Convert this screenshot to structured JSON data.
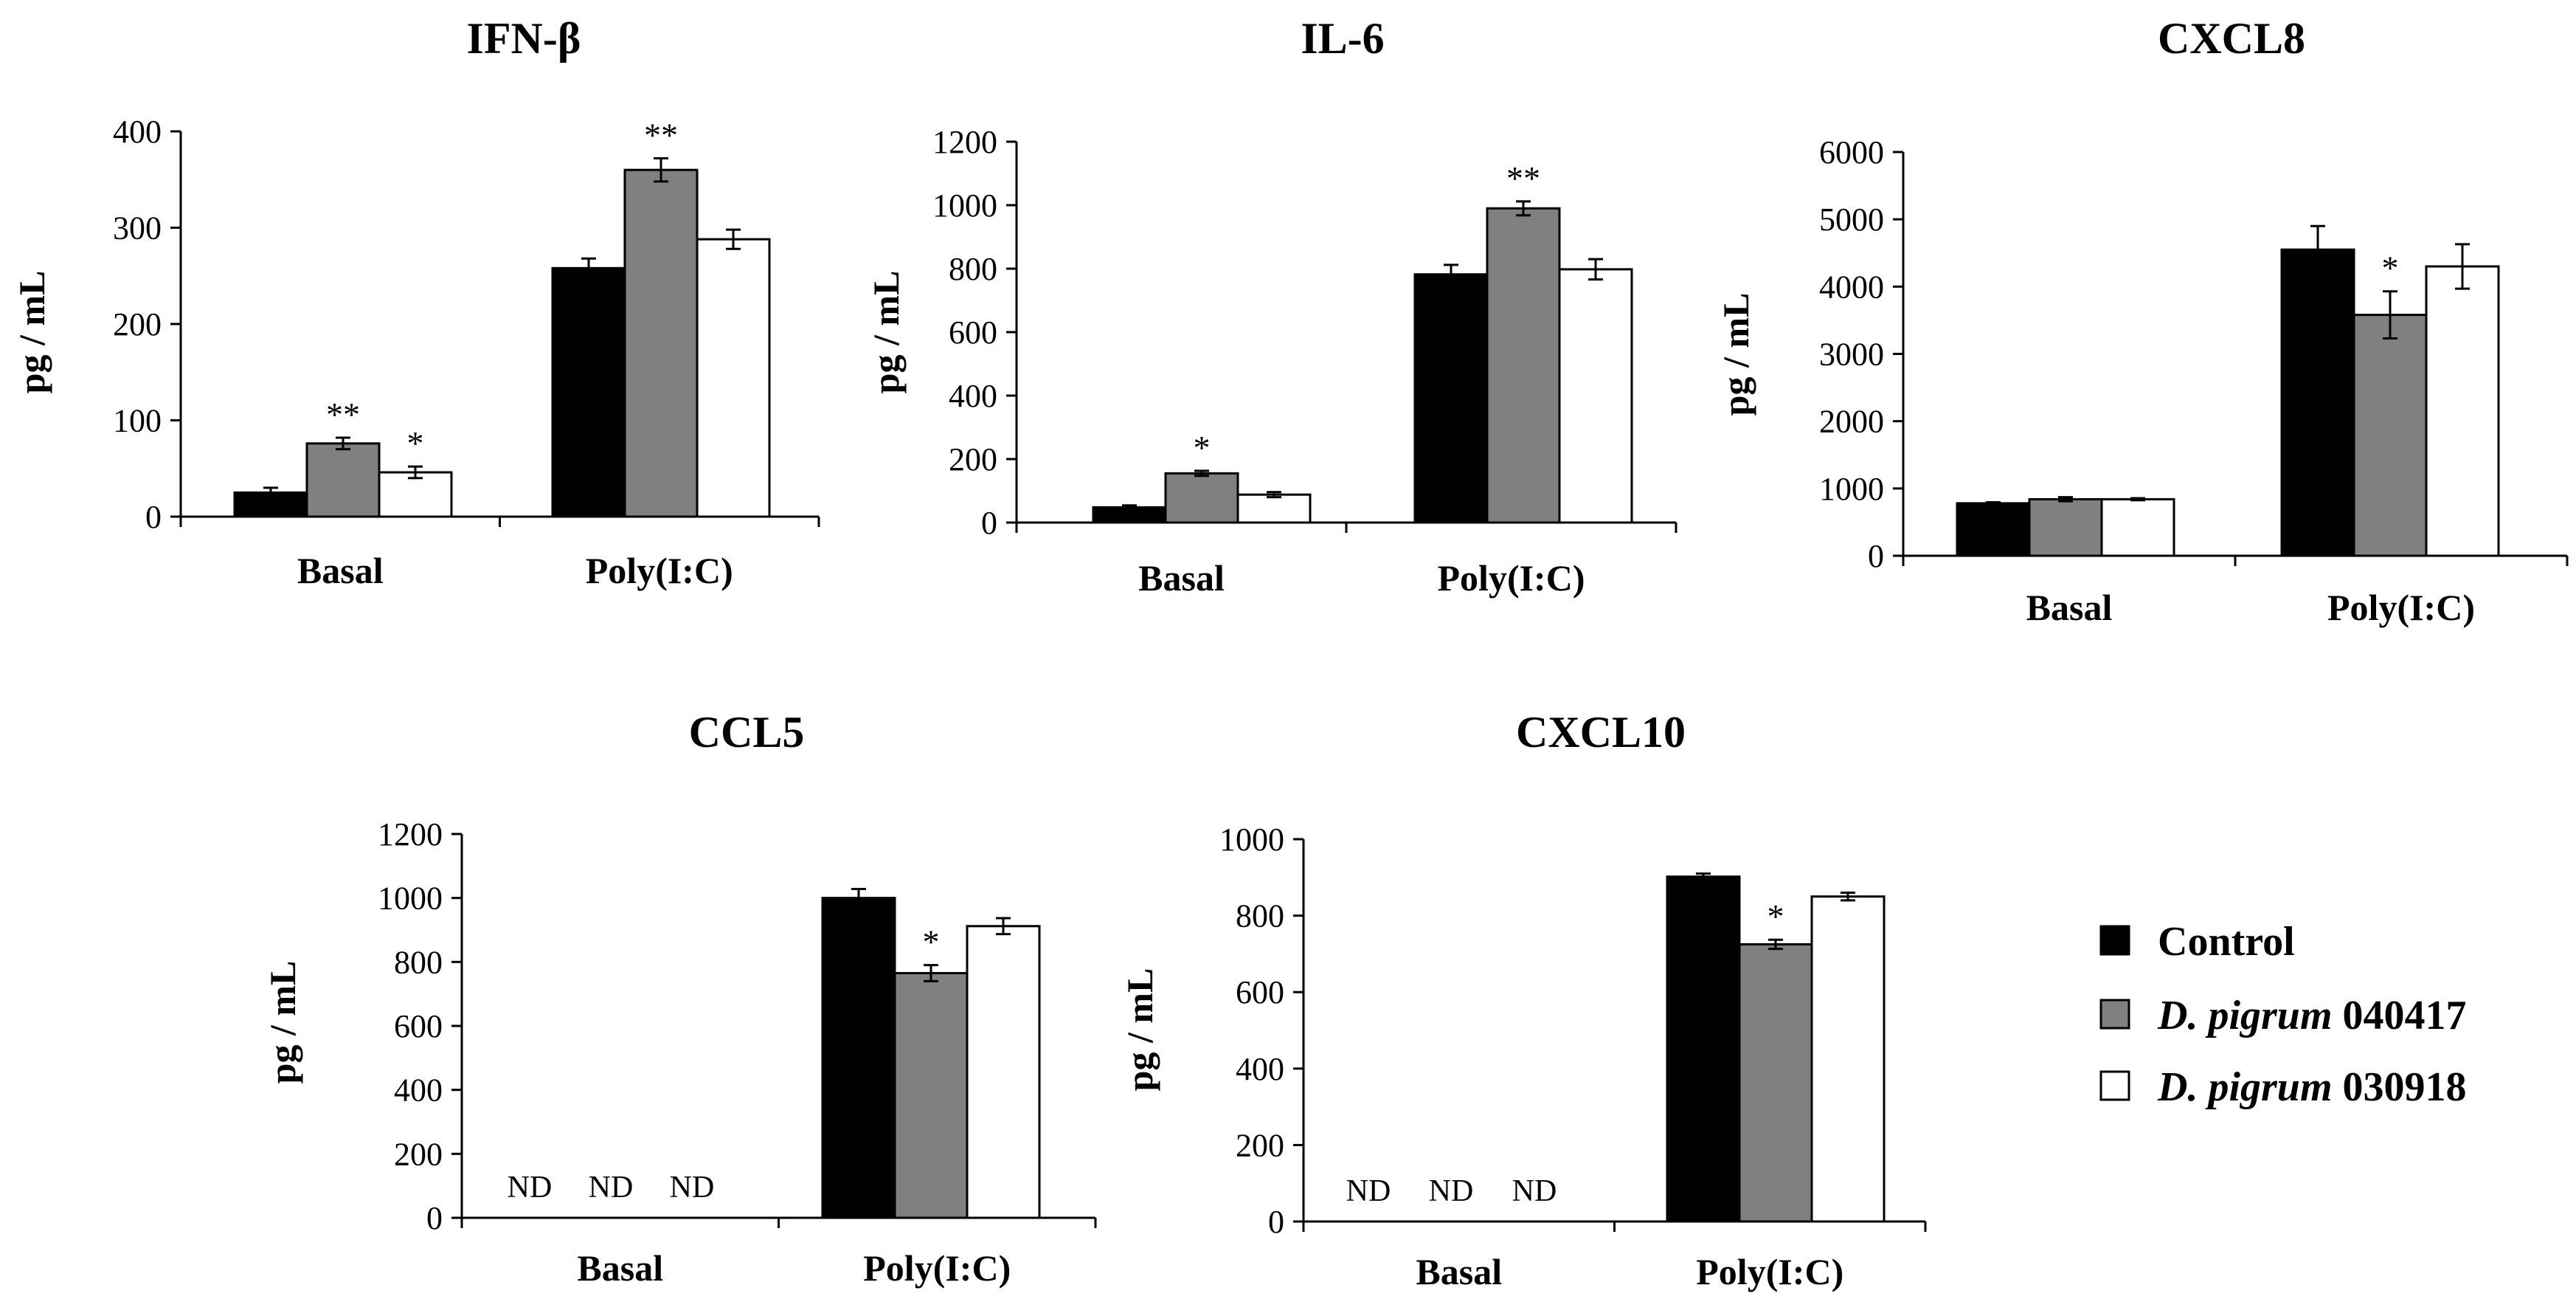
{
  "legend": {
    "items": [
      {
        "name": "Control",
        "italic": "",
        "bold": "Control",
        "color": "#000000"
      },
      {
        "name": "D. pigrum 040417",
        "italic": "D. pigrum",
        "bold": "040417",
        "color": "#808080"
      },
      {
        "name": "D. pigrum 030918",
        "italic": "D. pigrum",
        "bold": "030918",
        "color": "#ffffff"
      }
    ]
  },
  "chart_data": [
    {
      "type": "bar",
      "title": "IFN-β",
      "ylabel": "pg / mL",
      "xlabel": "",
      "categories": [
        "Basal",
        "Poly(I:C)"
      ],
      "ylim": [
        0,
        400
      ],
      "yticks": [
        0,
        100,
        200,
        300,
        400
      ],
      "series": [
        {
          "name": "Control",
          "values": [
            25,
            258
          ],
          "errors": [
            5,
            10
          ],
          "labels": [
            "",
            ""
          ]
        },
        {
          "name": "D. pigrum 040417",
          "values": [
            76,
            360
          ],
          "errors": [
            6,
            12
          ],
          "labels": [
            "**",
            "**"
          ]
        },
        {
          "name": "D. pigrum 030918",
          "values": [
            46,
            288
          ],
          "errors": [
            6,
            10
          ],
          "labels": [
            "*",
            ""
          ]
        }
      ]
    },
    {
      "type": "bar",
      "title": "IL-6",
      "ylabel": "pg / mL",
      "xlabel": "",
      "categories": [
        "Basal",
        "Poly(I:C)"
      ],
      "ylim": [
        0,
        1200
      ],
      "yticks": [
        0,
        200,
        400,
        600,
        800,
        1000,
        1200
      ],
      "series": [
        {
          "name": "Control",
          "values": [
            48,
            782
          ],
          "errors": [
            6,
            30
          ],
          "labels": [
            "",
            ""
          ]
        },
        {
          "name": "D. pigrum 040417",
          "values": [
            155,
            990
          ],
          "errors": [
            8,
            22
          ],
          "labels": [
            "*",
            "**"
          ]
        },
        {
          "name": "D. pigrum 030918",
          "values": [
            88,
            798
          ],
          "errors": [
            8,
            32
          ],
          "labels": [
            "",
            ""
          ]
        }
      ]
    },
    {
      "type": "bar",
      "title": "CXCL8",
      "ylabel": "pg / mL",
      "xlabel": "",
      "categories": [
        "Basal",
        "Poly(I:C)"
      ],
      "ylim": [
        0,
        6000
      ],
      "yticks": [
        0,
        1000,
        2000,
        3000,
        4000,
        5000,
        6000
      ],
      "series": [
        {
          "name": "Control",
          "values": [
            780,
            4550
          ],
          "errors": [
            15,
            350
          ],
          "labels": [
            "",
            ""
          ]
        },
        {
          "name": "D. pigrum 040417",
          "values": [
            840,
            3580
          ],
          "errors": [
            30,
            350
          ],
          "labels": [
            "",
            "*"
          ]
        },
        {
          "name": "D. pigrum 030918",
          "values": [
            840,
            4300
          ],
          "errors": [
            15,
            330
          ],
          "labels": [
            "",
            ""
          ]
        }
      ]
    },
    {
      "type": "bar",
      "title": "CCL5",
      "ylabel": "pg / mL",
      "xlabel": "",
      "categories": [
        "Basal",
        "Poly(I:C)"
      ],
      "ylim": [
        0,
        1200
      ],
      "yticks": [
        0,
        200,
        400,
        600,
        800,
        1000,
        1200
      ],
      "series": [
        {
          "name": "Control",
          "values": [
            null,
            1000
          ],
          "errors": [
            0,
            28
          ],
          "labels": [
            "ND",
            ""
          ]
        },
        {
          "name": "D. pigrum 040417",
          "values": [
            null,
            765
          ],
          "errors": [
            0,
            25
          ],
          "labels": [
            "ND",
            "*"
          ]
        },
        {
          "name": "D. pigrum 030918",
          "values": [
            null,
            912
          ],
          "errors": [
            0,
            25
          ],
          "labels": [
            "ND",
            ""
          ]
        }
      ]
    },
    {
      "type": "bar",
      "title": "CXCL10",
      "ylabel": "pg / mL",
      "xlabel": "",
      "categories": [
        "Basal",
        "Poly(I:C)"
      ],
      "ylim": [
        0,
        1000
      ],
      "yticks": [
        0,
        200,
        400,
        600,
        800,
        1000
      ],
      "series": [
        {
          "name": "Control",
          "values": [
            null,
            902
          ],
          "errors": [
            0,
            8
          ],
          "labels": [
            "ND",
            ""
          ]
        },
        {
          "name": "D. pigrum 040417",
          "values": [
            null,
            725
          ],
          "errors": [
            0,
            12
          ],
          "labels": [
            "ND",
            "*"
          ]
        },
        {
          "name": "D. pigrum 030918",
          "values": [
            null,
            850
          ],
          "errors": [
            0,
            10
          ],
          "labels": [
            "ND",
            ""
          ]
        }
      ]
    }
  ]
}
